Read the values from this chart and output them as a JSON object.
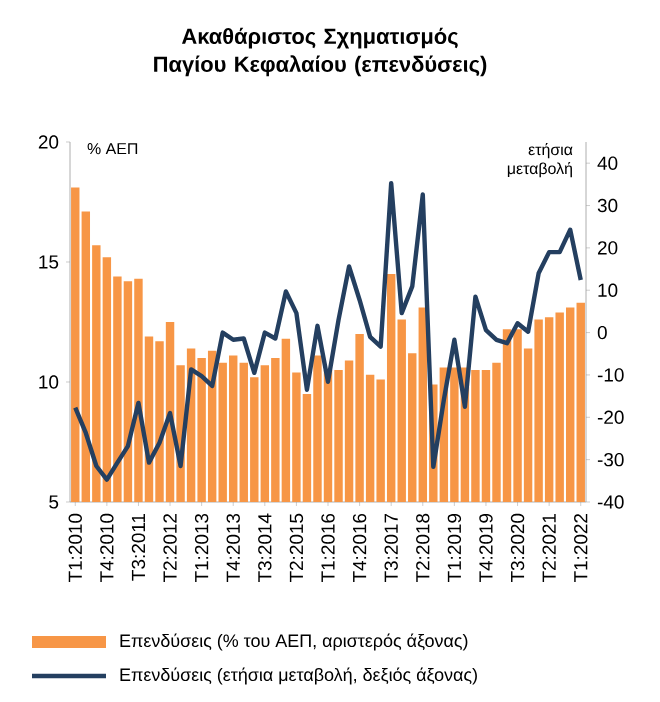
{
  "chart_data": {
    "type": "bar",
    "title": "Ακαθάριστος Σχηματισμός Παγίου Κεφαλαίου (επενδύσεις)",
    "ylabel": "% ΑΕΠ",
    "y2label": "ετήσια μεταβολή",
    "categories": [
      "Τ1:2010",
      null,
      null,
      "Τ4:2010",
      null,
      null,
      "Τ3:2011",
      null,
      null,
      "Τ2:2012",
      null,
      null,
      "Τ1:2013",
      null,
      null,
      "Τ4:2013",
      null,
      null,
      "Τ3:2014",
      null,
      null,
      "Τ2:2015",
      null,
      null,
      "Τ1:2016",
      null,
      null,
      "Τ4:2016",
      null,
      null,
      "Τ3:2017",
      null,
      null,
      "Τ2:2018",
      null,
      null,
      "Τ1:2019",
      null,
      null,
      "Τ4:2019",
      null,
      null,
      "Τ3:2020",
      null,
      null,
      "Τ2:2021",
      null,
      null,
      "Τ1:2022"
    ],
    "series": [
      {
        "name": "Επενδύσεις (% του ΑΕΠ, αριστερός άξονας)",
        "color": "#f79646",
        "values": [
          18.1,
          17.1,
          15.7,
          15.2,
          14.4,
          14.2,
          14.3,
          11.9,
          11.7,
          12.5,
          10.7,
          11.4,
          11.0,
          11.3,
          10.8,
          11.1,
          10.8,
          10.2,
          10.7,
          11.0,
          11.8,
          10.4,
          9.5,
          11.1,
          10.5,
          10.5,
          10.9,
          12.0,
          10.3,
          10.1,
          14.5,
          12.6,
          11.2,
          13.1,
          9.9,
          10.6,
          10.6,
          10.6,
          10.5,
          10.5,
          10.8,
          12.2,
          12.2,
          11.4,
          12.6,
          12.7,
          12.9,
          13.1,
          13.3
        ]
      },
      {
        "name": "Επενδύσεις (ετήσια μεταβολή, δεξιός άξονας)",
        "type": "line",
        "axis": "y2",
        "color": "#243f60",
        "values": [
          -17.7,
          -23.7,
          -31.5,
          -34.7,
          -30.7,
          -26.8,
          -16.6,
          -30.7,
          -26,
          -19,
          -31.5,
          -8.7,
          -10.3,
          -12.6,
          0,
          -1.7,
          -1.4,
          -9.5,
          0,
          -1.4,
          9.7,
          4.6,
          -13.5,
          1.6,
          -11.6,
          3,
          15.6,
          7.7,
          -1,
          -3.3,
          35.3,
          4.6,
          10.9,
          32.6,
          -31.7,
          -15.9,
          -1.7,
          -17.5,
          8.5,
          0.6,
          -1.7,
          -2.5,
          2.2,
          0.2,
          14,
          19,
          19,
          24.3,
          12.4
        ]
      }
    ],
    "ylim": [
      5,
      20
    ],
    "yticks": [
      5,
      10,
      15,
      20
    ],
    "y2lim": [
      -40,
      45
    ],
    "y2ticks": [
      -40,
      -30,
      -20,
      -10,
      0,
      10,
      20,
      30,
      40
    ],
    "legend": "bottom",
    "grid": false,
    "marker": "none",
    "line_style": "solid"
  }
}
